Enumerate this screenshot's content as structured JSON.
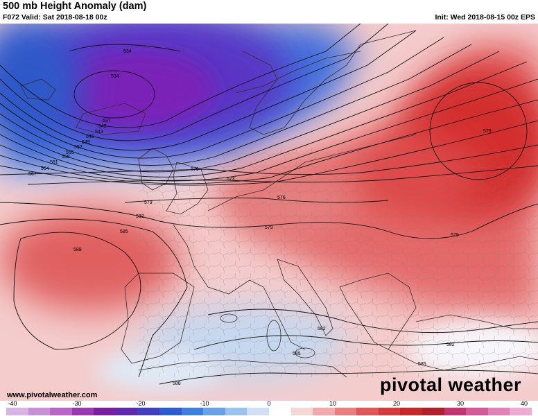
{
  "header": {
    "title": "500 mb Height Anomaly (dam)",
    "valid": "F072 Valid: Sat 2018-08-18 00z",
    "init": "Init: Wed 2018-08-15 00z EPS"
  },
  "footer": {
    "url": "www.pivotalweather.com",
    "brand": "pivotal weather"
  },
  "colorbar": {
    "ticks": [
      "-40",
      "-30",
      "-20",
      "-10",
      "0",
      "10",
      "20",
      "30",
      "40"
    ],
    "colors": [
      "#d7b3e6",
      "#c990d8",
      "#b765c6",
      "#9a39b0",
      "#7b1fa2",
      "#5e2bb0",
      "#3f3fbf",
      "#2d5bd1",
      "#3f7fe0",
      "#6aa2ea",
      "#9cc2f0",
      "#cfe0f6",
      "#ffffff",
      "#f7d6d6",
      "#f1a9a9",
      "#ea7e7e",
      "#e05555",
      "#d63a3a",
      "#c62828",
      "#b01f2a",
      "#c2356e",
      "#d35a96",
      "#e281b6",
      "#efaad2"
    ]
  },
  "contours": {
    "labels": [
      "534",
      "534",
      "537",
      "540",
      "543",
      "546",
      "549",
      "552",
      "555",
      "558",
      "561",
      "564",
      "567",
      "570",
      "573",
      "576",
      "579",
      "579",
      "579",
      "582",
      "585",
      "588",
      "582",
      "585",
      "588",
      "579",
      "582",
      "585"
    ]
  },
  "colors": {
    "trough": "#7a22b8",
    "ridge": "#d83a3a",
    "positive_weak": "#f3c4c4",
    "negative_weak": "#b9d2ee"
  }
}
